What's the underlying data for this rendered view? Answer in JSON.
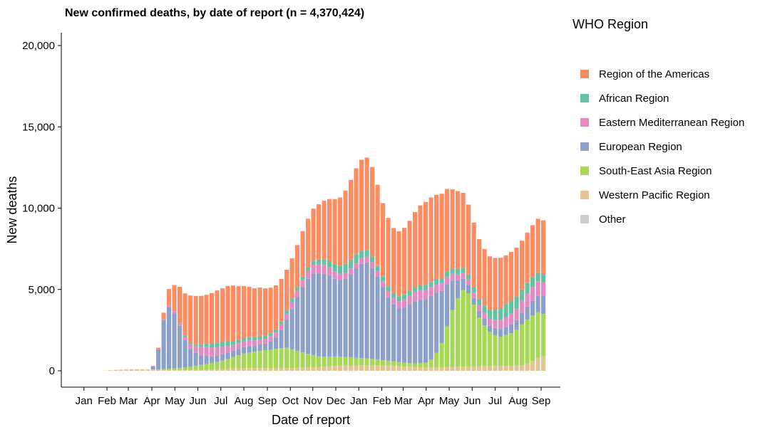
{
  "chart_data": {
    "type": "bar",
    "stacked": true,
    "title": "New confirmed deaths, by date of report (n = 4,370,424)",
    "xlabel": "Date of report",
    "ylabel": "New deaths",
    "ylim": [
      -1000,
      20800
    ],
    "y_ticks": [
      0,
      5000,
      10000,
      15000,
      20000
    ],
    "y_tick_labels": [
      "0",
      "5,000",
      "10,000",
      "15,000",
      "20,000"
    ],
    "x_ticks": [
      "Jan",
      "Feb",
      "Mar",
      "Apr",
      "May",
      "Jun",
      "Jul",
      "Aug",
      "Sep",
      "Oct",
      "Nov",
      "Dec",
      "Jan",
      "Feb",
      "Mar",
      "Apr",
      "May",
      "Jun",
      "Jul",
      "Aug",
      "Sep"
    ],
    "x_unit": "week",
    "x_start_week": 1,
    "x_tick_weeks": [
      0.5,
      4.8,
      8.8,
      13.2,
      17.5,
      21.8,
      26.1,
      30.4,
      34.8,
      39.1,
      43.3,
      47.6,
      51.9,
      56.2,
      60.2,
      64.5,
      68.8,
      73.1,
      77.4,
      81.7,
      86.0
    ],
    "grid": false,
    "legend_title": "WHO Region",
    "legend_position": "right",
    "series": [
      {
        "name": "Western Pacific Region",
        "color": "#e5c494",
        "values": [
          0,
          0,
          0,
          10,
          40,
          60,
          70,
          80,
          90,
          100,
          90,
          80,
          60,
          50,
          50,
          50,
          40,
          40,
          40,
          50,
          50,
          60,
          70,
          80,
          90,
          100,
          120,
          140,
          150,
          160,
          170,
          170,
          170,
          170,
          160,
          150,
          150,
          160,
          170,
          180,
          190,
          200,
          220,
          240,
          260,
          280,
          300,
          320,
          330,
          330,
          330,
          340,
          350,
          350,
          340,
          330,
          320,
          300,
          280,
          260,
          250,
          240,
          220,
          200,
          200,
          200,
          210,
          230,
          240,
          250,
          260,
          270,
          270,
          280,
          290,
          290,
          290,
          300,
          300,
          310,
          320,
          350,
          450,
          600,
          800,
          900
        ]
      },
      {
        "name": "South-East Asia Region",
        "color": "#a6d854",
        "values": [
          0,
          0,
          0,
          0,
          0,
          0,
          0,
          0,
          0,
          0,
          0,
          0,
          20,
          40,
          60,
          80,
          100,
          130,
          160,
          200,
          250,
          300,
          350,
          400,
          450,
          520,
          600,
          700,
          800,
          900,
          950,
          1000,
          1050,
          1100,
          1150,
          1200,
          1250,
          1250,
          1150,
          1050,
          950,
          850,
          750,
          650,
          600,
          580,
          560,
          540,
          520,
          500,
          470,
          440,
          410,
          380,
          350,
          320,
          300,
          280,
          250,
          230,
          220,
          220,
          250,
          300,
          500,
          900,
          1500,
          2500,
          3500,
          4200,
          4700,
          4500,
          3800,
          3000,
          2500,
          2100,
          1900,
          1800,
          1900,
          2000,
          2200,
          2500,
          2700,
          2800,
          2800,
          2600
        ]
      },
      {
        "name": "European Region",
        "color": "#8da0cb",
        "values": [
          0,
          0,
          0,
          0,
          0,
          0,
          0,
          0,
          0,
          0,
          0,
          0,
          200,
          1200,
          3000,
          3800,
          3400,
          2600,
          1700,
          1100,
          800,
          600,
          500,
          400,
          400,
          400,
          400,
          400,
          400,
          400,
          400,
          400,
          400,
          400,
          500,
          700,
          1100,
          1700,
          2500,
          3300,
          4000,
          4600,
          5000,
          5100,
          5100,
          5000,
          4800,
          4700,
          4800,
          5100,
          5500,
          5800,
          5900,
          5600,
          5100,
          4500,
          3900,
          3500,
          3300,
          3400,
          3600,
          3800,
          3900,
          3900,
          3900,
          3700,
          3200,
          2600,
          1800,
          1100,
          700,
          500,
          400,
          400,
          400,
          400,
          450,
          500,
          500,
          550,
          600,
          700,
          800,
          900,
          1000,
          1100
        ]
      },
      {
        "name": "Eastern Mediterranean Region",
        "color": "#e78ac3",
        "values": [
          0,
          0,
          0,
          0,
          0,
          0,
          0,
          0,
          0,
          0,
          0,
          0,
          10,
          30,
          50,
          80,
          100,
          150,
          200,
          300,
          400,
          500,
          550,
          550,
          500,
          450,
          400,
          350,
          350,
          350,
          350,
          300,
          300,
          300,
          300,
          300,
          350,
          400,
          400,
          400,
          450,
          500,
          550,
          550,
          550,
          500,
          450,
          400,
          380,
          360,
          350,
          350,
          350,
          350,
          350,
          360,
          380,
          400,
          450,
          500,
          550,
          600,
          600,
          580,
          560,
          520,
          480,
          450,
          420,
          400,
          380,
          350,
          350,
          370,
          400,
          450,
          500,
          550,
          600,
          650,
          700,
          750,
          800,
          850,
          900,
          850
        ]
      },
      {
        "name": "African Region",
        "color": "#66c2a5",
        "values": [
          0,
          0,
          0,
          0,
          0,
          0,
          0,
          0,
          0,
          0,
          0,
          0,
          0,
          0,
          10,
          20,
          30,
          40,
          60,
          80,
          100,
          150,
          200,
          250,
          300,
          300,
          300,
          250,
          200,
          200,
          200,
          200,
          200,
          200,
          200,
          200,
          200,
          200,
          200,
          200,
          200,
          200,
          250,
          300,
          350,
          400,
          450,
          500,
          550,
          550,
          500,
          450,
          400,
          350,
          300,
          300,
          300,
          300,
          300,
          300,
          300,
          300,
          300,
          300,
          300,
          300,
          300,
          300,
          300,
          300,
          300,
          300,
          300,
          350,
          400,
          500,
          600,
          700,
          800,
          800,
          750,
          700,
          650,
          600,
          550,
          500
        ]
      },
      {
        "name": "Region of the Americas",
        "color": "#fc8d62",
        "values": [
          0,
          0,
          0,
          0,
          0,
          0,
          0,
          0,
          0,
          0,
          0,
          0,
          10,
          100,
          400,
          1000,
          1600,
          2200,
          2600,
          2900,
          3000,
          3000,
          3000,
          3100,
          3200,
          3300,
          3400,
          3400,
          3300,
          3200,
          3100,
          3000,
          3000,
          2900,
          2800,
          2700,
          2600,
          2500,
          2500,
          2600,
          2800,
          3000,
          3200,
          3400,
          3600,
          3800,
          4000,
          4200,
          4500,
          4900,
          5300,
          5600,
          5700,
          5500,
          5000,
          4500,
          4200,
          4000,
          4000,
          4100,
          4300,
          4600,
          4900,
          5100,
          5200,
          5200,
          5200,
          5100,
          4900,
          4800,
          4600,
          4300,
          4000,
          3700,
          3500,
          3300,
          3200,
          3100,
          3000,
          3000,
          3000,
          3000,
          3100,
          3200,
          3300,
          3300
        ]
      },
      {
        "name": "Other",
        "color": "#cccccc",
        "values": [
          0,
          0,
          0,
          0,
          0,
          0,
          0,
          0,
          0,
          0,
          0,
          0,
          0,
          0,
          0,
          0,
          0,
          0,
          0,
          0,
          0,
          0,
          0,
          0,
          0,
          0,
          0,
          0,
          0,
          0,
          0,
          0,
          0,
          0,
          0,
          0,
          0,
          0,
          0,
          0,
          0,
          0,
          0,
          0,
          0,
          0,
          0,
          0,
          0,
          0,
          0,
          0,
          0,
          0,
          0,
          0,
          0,
          0,
          0,
          0,
          0,
          0,
          0,
          0,
          0,
          0,
          0,
          0,
          0,
          0,
          0,
          0,
          0,
          0,
          0,
          0,
          0,
          0,
          0,
          0,
          0,
          0,
          0,
          0,
          0,
          0
        ]
      }
    ],
    "legend_order": [
      "Region of the Americas",
      "African Region",
      "Eastern Mediterranean Region",
      "European Region",
      "South-East Asia Region",
      "Western Pacific Region",
      "Other"
    ]
  }
}
